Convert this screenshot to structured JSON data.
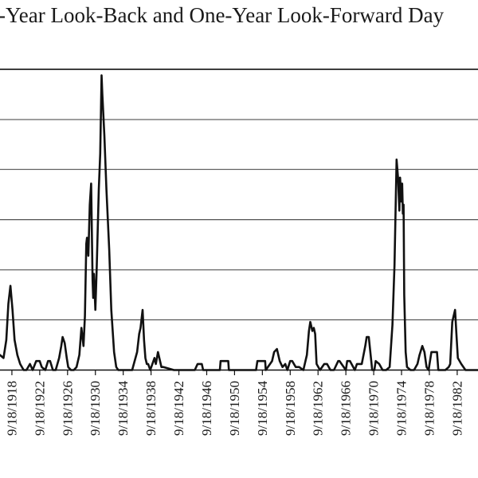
{
  "chart_data": {
    "type": "line",
    "title": "-Year Look-Back and One-Year Look-Forward Day",
    "xlabel": "",
    "ylabel": "",
    "grid": true,
    "legend": "none",
    "line_color": "#111111",
    "x_tick_labels": [
      "9/18/1918",
      "9/18/1922",
      "9/18/1926",
      "9/18/1930",
      "9/18/1934",
      "9/18/1938",
      "9/18/1942",
      "9/18/1946",
      "9/18/1950",
      "9/18/1954",
      "9/18/1958",
      "9/18/1962",
      "9/18/1966",
      "9/18/1970",
      "9/18/1974",
      "9/18/1978",
      "9/18/1982"
    ],
    "xlim": [
      1917.0,
      1985.7
    ],
    "ylim": [
      0,
      1
    ],
    "gridlines": [
      0.167,
      0.333,
      0.5,
      0.667,
      0.833,
      1.0
    ],
    "series": [
      {
        "x": [
          1917.0,
          1917.5,
          1917.9,
          1918.2,
          1918.5,
          1918.8,
          1919.1,
          1919.5,
          1919.9,
          1920.4,
          1920.8,
          1921.3,
          1921.7,
          1922.2,
          1922.7,
          1923.0,
          1923.5,
          1923.9,
          1924.2,
          1924.6,
          1925.0,
          1925.5,
          1925.8,
          1926.0,
          1926.3,
          1926.6,
          1926.8,
          1927.2,
          1927.6,
          1928.0,
          1928.4,
          1928.7,
          1929.0,
          1929.2,
          1929.4,
          1929.5,
          1929.7,
          1929.9,
          1930.1,
          1930.3,
          1930.4,
          1930.5,
          1930.7,
          1930.9,
          1931.2,
          1931.4,
          1931.6,
          1931.7,
          1932.0,
          1932.3,
          1932.7,
          1933.0,
          1933.4,
          1933.7,
          1934.0,
          1934.5,
          1935.0,
          1936.0,
          1936.7,
          1937.0,
          1937.2,
          1937.5,
          1937.7,
          1937.9,
          1938.1,
          1938.3,
          1938.6,
          1939.2,
          1939.4,
          1939.7,
          1940.0,
          1940.2,
          1940.5,
          1942.0,
          1945.0,
          1945.4,
          1946.0,
          1946.2,
          1948.6,
          1948.7,
          1949.8,
          1949.9,
          1953.8,
          1954.0,
          1955.1,
          1955.2,
          1956.1,
          1956.4,
          1956.8,
          1957.2,
          1957.6,
          1958.0,
          1958.3,
          1958.7,
          1959.0,
          1959.5,
          1960.0,
          1960.6,
          1961.1,
          1961.4,
          1961.6,
          1961.9,
          1962.1,
          1962.3,
          1962.5,
          1963.0,
          1963.6,
          1964.0,
          1964.5,
          1965.0,
          1965.6,
          1965.8,
          1966.7,
          1966.9,
          1967.3,
          1968.0,
          1968.3,
          1969.0,
          1969.5,
          1969.7,
          1970.0,
          1970.5,
          1970.8,
          1971.0,
          1971.5,
          1972.0,
          1972.5,
          1973.0,
          1973.4,
          1973.7,
          1974.0,
          1974.2,
          1974.4,
          1974.5,
          1974.7,
          1974.8,
          1974.9,
          1975.0,
          1975.1,
          1975.3,
          1975.5,
          1976.0,
          1976.5,
          1977.0,
          1977.3,
          1977.7,
          1978.0,
          1978.3,
          1978.6,
          1979.0,
          1979.8,
          1980.0,
          1981.0,
          1981.5,
          1981.7,
          1982.0,
          1982.2,
          1982.4,
          1982.6,
          1982.8,
          1983.3,
          1983.9,
          1985.7
        ],
        "y": [
          0.05,
          0.04,
          0.1,
          0.22,
          0.28,
          0.2,
          0.1,
          0.05,
          0.02,
          0.0,
          0.0,
          0.02,
          0.0,
          0.03,
          0.03,
          0.01,
          0.0,
          0.03,
          0.03,
          0.0,
          0.0,
          0.04,
          0.08,
          0.11,
          0.09,
          0.04,
          0.01,
          0.0,
          0.0,
          0.01,
          0.05,
          0.14,
          0.08,
          0.18,
          0.42,
          0.44,
          0.38,
          0.55,
          0.62,
          0.3,
          0.24,
          0.32,
          0.2,
          0.34,
          0.6,
          0.72,
          0.98,
          0.92,
          0.78,
          0.6,
          0.4,
          0.2,
          0.06,
          0.01,
          0.0,
          0.0,
          0.0,
          0.0,
          0.06,
          0.12,
          0.14,
          0.2,
          0.1,
          0.04,
          0.02,
          0.02,
          0.0,
          0.04,
          0.02,
          0.06,
          0.03,
          0.01,
          0.01,
          0.0,
          0.0,
          0.02,
          0.02,
          0.0,
          0.0,
          0.03,
          0.03,
          0.0,
          0.0,
          0.03,
          0.03,
          0.0,
          0.03,
          0.06,
          0.07,
          0.03,
          0.01,
          0.02,
          0.0,
          0.03,
          0.03,
          0.01,
          0.01,
          0.0,
          0.05,
          0.13,
          0.16,
          0.13,
          0.14,
          0.12,
          0.02,
          0.0,
          0.02,
          0.02,
          0.0,
          0.0,
          0.03,
          0.03,
          0.0,
          0.03,
          0.03,
          0.0,
          0.02,
          0.02,
          0.08,
          0.11,
          0.11,
          0.0,
          0.0,
          0.03,
          0.02,
          0.0,
          0.0,
          0.01,
          0.15,
          0.35,
          0.7,
          0.64,
          0.53,
          0.64,
          0.56,
          0.62,
          0.52,
          0.55,
          0.25,
          0.06,
          0.01,
          0.0,
          0.0,
          0.02,
          0.05,
          0.08,
          0.06,
          0.01,
          0.0,
          0.06,
          0.06,
          0.0,
          0.0,
          0.01,
          0.02,
          0.16,
          0.18,
          0.2,
          0.12,
          0.04,
          0.02,
          0.0,
          0.0
        ]
      }
    ]
  }
}
